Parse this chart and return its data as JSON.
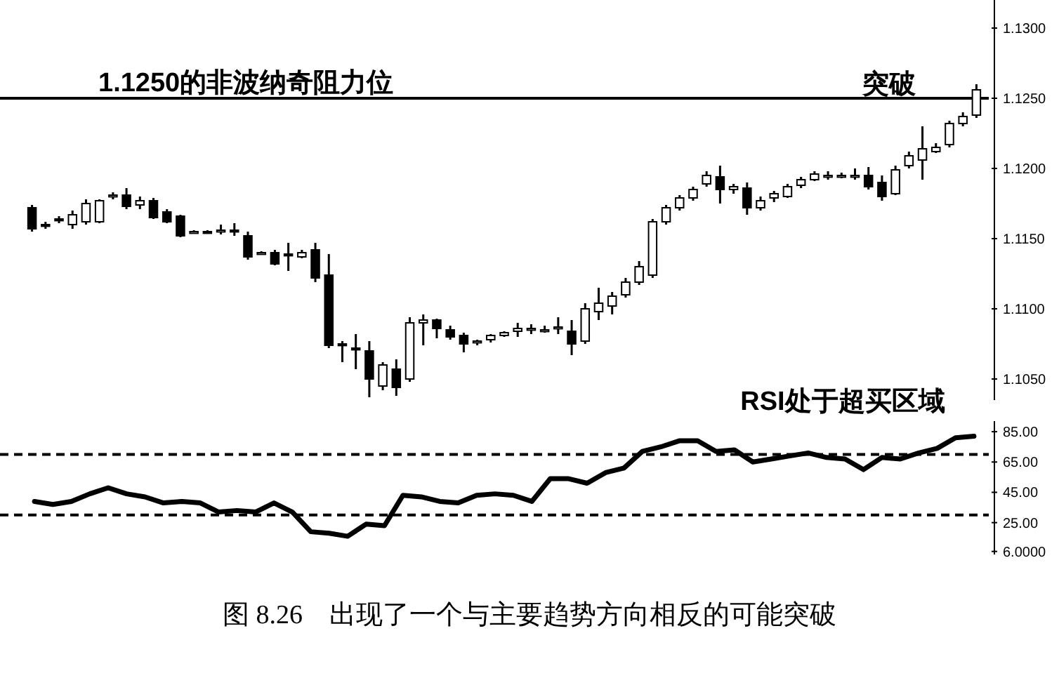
{
  "chart_data": [
    {
      "type": "candlestick",
      "categories": [
        null,
        null,
        null,
        null,
        null,
        null,
        null,
        null,
        null,
        null,
        null,
        null,
        null,
        null,
        null,
        null,
        null,
        null,
        null,
        null,
        null,
        null,
        null,
        null,
        null,
        null,
        null,
        null,
        null,
        null,
        null,
        null,
        null,
        null,
        null,
        null,
        null,
        null,
        null,
        null,
        null,
        null,
        null,
        null,
        null,
        null,
        null,
        null,
        null,
        null,
        null,
        null,
        null,
        null,
        null,
        null,
        null,
        null,
        null,
        null,
        null,
        null,
        null,
        null,
        null,
        null,
        null,
        null,
        null,
        null,
        null
      ],
      "ohlc": [
        [
          1.1172,
          1.1174,
          1.1155,
          1.1157
        ],
        [
          1.116,
          1.1162,
          1.1157,
          1.1159
        ],
        [
          1.1164,
          1.1166,
          1.1161,
          1.1163
        ],
        [
          1.116,
          1.117,
          1.1157,
          1.1167
        ],
        [
          1.1162,
          1.1178,
          1.116,
          1.1175
        ],
        [
          1.1162,
          1.1178,
          1.1161,
          1.1177
        ],
        [
          1.118,
          1.1183,
          1.1178,
          1.1181
        ],
        [
          1.1181,
          1.1186,
          1.1171,
          1.1173
        ],
        [
          1.1174,
          1.118,
          1.1171,
          1.1177
        ],
        [
          1.1177,
          1.1179,
          1.1164,
          1.1165
        ],
        [
          1.1169,
          1.1171,
          1.1161,
          1.1162
        ],
        [
          1.1166,
          1.1167,
          1.1151,
          1.1152
        ],
        [
          1.1155,
          1.1156,
          1.1154,
          1.1155
        ],
        [
          1.1155,
          1.1156,
          1.1154,
          1.1154
        ],
        [
          1.1156,
          1.116,
          1.1153,
          1.1156
        ],
        [
          1.1156,
          1.1161,
          1.1152,
          1.1155
        ],
        [
          1.1152,
          1.1155,
          1.1135,
          1.1137
        ],
        [
          1.114,
          1.1141,
          1.1139,
          1.114
        ],
        [
          1.114,
          1.1142,
          1.1131,
          1.1132
        ],
        [
          1.1139,
          1.1147,
          1.1127,
          1.1138
        ],
        [
          1.1137,
          1.1142,
          1.1136,
          1.114
        ],
        [
          1.1142,
          1.1147,
          1.1119,
          1.1122
        ],
        [
          1.1124,
          1.1139,
          1.1072,
          1.1074
        ],
        [
          1.1075,
          1.1077,
          1.1062,
          1.1074
        ],
        [
          1.1072,
          1.1082,
          1.1057,
          1.1071
        ],
        [
          1.107,
          1.1077,
          1.1037,
          1.105
        ],
        [
          1.1045,
          1.1062,
          1.1042,
          1.106
        ],
        [
          1.1057,
          1.1064,
          1.1038,
          1.1044
        ],
        [
          1.105,
          1.1094,
          1.1048,
          1.109
        ],
        [
          1.109,
          1.1096,
          1.1074,
          1.1092
        ],
        [
          1.1092,
          1.1093,
          1.1079,
          1.1086
        ],
        [
          1.1085,
          1.1088,
          1.1078,
          1.108
        ],
        [
          1.1081,
          1.1083,
          1.1069,
          1.1075
        ],
        [
          1.1076,
          1.1078,
          1.1074,
          1.1077
        ],
        [
          1.1078,
          1.1082,
          1.1076,
          1.1081
        ],
        [
          1.1081,
          1.1084,
          1.108,
          1.1083
        ],
        [
          1.1084,
          1.109,
          1.108,
          1.1086
        ],
        [
          1.1086,
          1.1089,
          1.1082,
          1.1086
        ],
        [
          1.1085,
          1.1088,
          1.1083,
          1.1085
        ],
        [
          1.1086,
          1.1094,
          1.1082,
          1.1087
        ],
        [
          1.1084,
          1.1092,
          1.1067,
          1.1075
        ],
        [
          1.1077,
          1.1104,
          1.1075,
          1.11
        ],
        [
          1.1098,
          1.1115,
          1.1092,
          1.1104
        ],
        [
          1.1102,
          1.1112,
          1.1096,
          1.1109
        ],
        [
          1.111,
          1.1122,
          1.1108,
          1.1119
        ],
        [
          1.1119,
          1.1134,
          1.1117,
          1.113
        ],
        [
          1.1124,
          1.1164,
          1.1122,
          1.1162
        ],
        [
          1.1162,
          1.1174,
          1.116,
          1.1172
        ],
        [
          1.1172,
          1.1181,
          1.117,
          1.1179
        ],
        [
          1.1179,
          1.1187,
          1.1177,
          1.1185
        ],
        [
          1.1189,
          1.1198,
          1.1187,
          1.1195
        ],
        [
          1.1194,
          1.1202,
          1.1175,
          1.1185
        ],
        [
          1.1185,
          1.1189,
          1.1182,
          1.1187
        ],
        [
          1.1186,
          1.119,
          1.1167,
          1.1172
        ],
        [
          1.1172,
          1.118,
          1.117,
          1.1177
        ],
        [
          1.1179,
          1.1184,
          1.1176,
          1.1182
        ],
        [
          1.118,
          1.1189,
          1.1179,
          1.1187
        ],
        [
          1.1188,
          1.1194,
          1.1186,
          1.1192
        ],
        [
          1.1192,
          1.1198,
          1.1191,
          1.1196
        ],
        [
          1.1195,
          1.1198,
          1.1192,
          1.1195
        ],
        [
          1.1194,
          1.1197,
          1.1193,
          1.1195
        ],
        [
          1.1195,
          1.12,
          1.1192,
          1.1195
        ],
        [
          1.1195,
          1.1201,
          1.1185,
          1.1187
        ],
        [
          1.119,
          1.1195,
          1.1177,
          1.118
        ],
        [
          1.1182,
          1.1202,
          1.1181,
          1.1199
        ],
        [
          1.1202,
          1.1212,
          1.12,
          1.1209
        ],
        [
          1.1206,
          1.123,
          1.1192,
          1.1214
        ],
        [
          1.1212,
          1.1218,
          1.1211,
          1.1215
        ],
        [
          1.1217,
          1.1234,
          1.1215,
          1.1232
        ],
        [
          1.1232,
          1.124,
          1.123,
          1.1237
        ],
        [
          1.1238,
          1.126,
          1.1236,
          1.1256
        ]
      ],
      "ylim": [
        1.1035,
        1.132
      ],
      "yticks": [
        {
          "value": 1.13,
          "label": "1.1300"
        },
        {
          "value": 1.125,
          "label": "1.1250"
        },
        {
          "value": 1.12,
          "label": "1.1200"
        },
        {
          "value": 1.115,
          "label": "1.1150"
        },
        {
          "value": 1.11,
          "label": "1.1100"
        },
        {
          "value": 1.105,
          "label": "1.1050"
        }
      ],
      "ref_lines": [
        {
          "axis": "y",
          "value": 1.125,
          "label": "1.1250的非波纳奇阻力位",
          "color": "#000000",
          "line_style": "solid"
        }
      ],
      "annotations": [
        "突破"
      ],
      "tick_labels": "y",
      "grid": false
    },
    {
      "type": "line",
      "categories": [
        null,
        null,
        null,
        null,
        null,
        null,
        null,
        null,
        null,
        null,
        null,
        null,
        null,
        null,
        null,
        null,
        null,
        null,
        null,
        null,
        null,
        null,
        null,
        null,
        null,
        null,
        null,
        null,
        null,
        null,
        null,
        null,
        null,
        null,
        null,
        null,
        null,
        null,
        null,
        null,
        null,
        null,
        null,
        null,
        null,
        null,
        null,
        null,
        null,
        null,
        null,
        null
      ],
      "series": [
        {
          "color": "#000000",
          "values": [
            39,
            37,
            39,
            44,
            48,
            44,
            42,
            38,
            39,
            38,
            32,
            33,
            32,
            38,
            32,
            19,
            18,
            16,
            24,
            23,
            43,
            42,
            39,
            38,
            43,
            44,
            43,
            39,
            54,
            54,
            51,
            58,
            61,
            72,
            75,
            79,
            79,
            72,
            73,
            65,
            67,
            69,
            71,
            68,
            67,
            60,
            68,
            67,
            71,
            74,
            81,
            82
          ]
        }
      ],
      "ylim": [
        4,
        92
      ],
      "yticks": [
        {
          "value": 85,
          "label": "85.00"
        },
        {
          "value": 65,
          "label": "65.00"
        },
        {
          "value": 45,
          "label": "45.00"
        },
        {
          "value": 25,
          "label": "25.00"
        },
        {
          "value": 6,
          "label": "6.0000"
        }
      ],
      "ref_lines": [
        {
          "axis": "y",
          "value": 70,
          "color": "#000000",
          "line_style": "dashed"
        },
        {
          "axis": "y",
          "value": 30,
          "color": "#000000",
          "line_style": "dashed"
        }
      ],
      "annotations": [
        "RSI处于超买区域",
        "图 8.26　出现了一个与主要趋势方向相反的可能突破"
      ],
      "tick_labels": "y",
      "grid": false,
      "marker": "none",
      "line_style": "solid"
    }
  ]
}
